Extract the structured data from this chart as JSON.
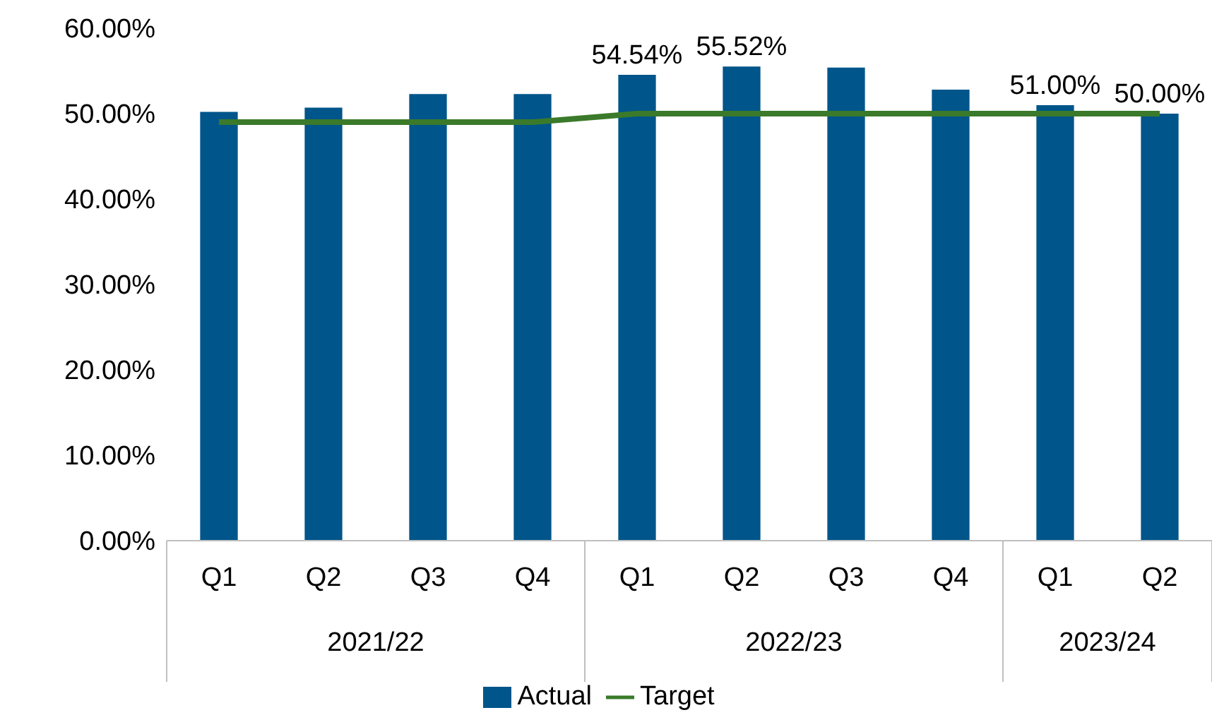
{
  "chart_data": {
    "type": "bar",
    "categories": [
      "Q1",
      "Q2",
      "Q3",
      "Q4",
      "Q1",
      "Q2",
      "Q3",
      "Q4",
      "Q1",
      "Q2"
    ],
    "series": [
      {
        "name": "Actual",
        "color": "#00558a",
        "values": [
          50.2,
          50.7,
          52.3,
          52.3,
          54.54,
          55.52,
          55.4,
          52.8,
          51.0,
          50.0
        ],
        "value_labels": [
          null,
          null,
          null,
          null,
          "54.54%",
          "55.52%",
          null,
          null,
          "51.00%",
          "50.00%"
        ]
      },
      {
        "name": "Target",
        "type": "line",
        "color": "#3a7a2a",
        "values": [
          49,
          49,
          49,
          49,
          50,
          50,
          50,
          50,
          50,
          50
        ]
      }
    ],
    "annotations": [
      "2021/22",
      "2022/23",
      "2023/24"
    ],
    "ylim": [
      0,
      60
    ],
    "yticks": [
      {
        "value": 0,
        "label": "0.00%"
      },
      {
        "value": 10,
        "label": "10.00%"
      },
      {
        "value": 20,
        "label": "20.00%"
      },
      {
        "value": 30,
        "label": "30.00%"
      },
      {
        "value": 40,
        "label": "40.00%"
      },
      {
        "value": 50,
        "label": "50.00%"
      },
      {
        "value": 60,
        "label": "60.00%"
      }
    ],
    "grid": false,
    "legend": "bottom",
    "marker": "none",
    "line_style": "solid"
  }
}
